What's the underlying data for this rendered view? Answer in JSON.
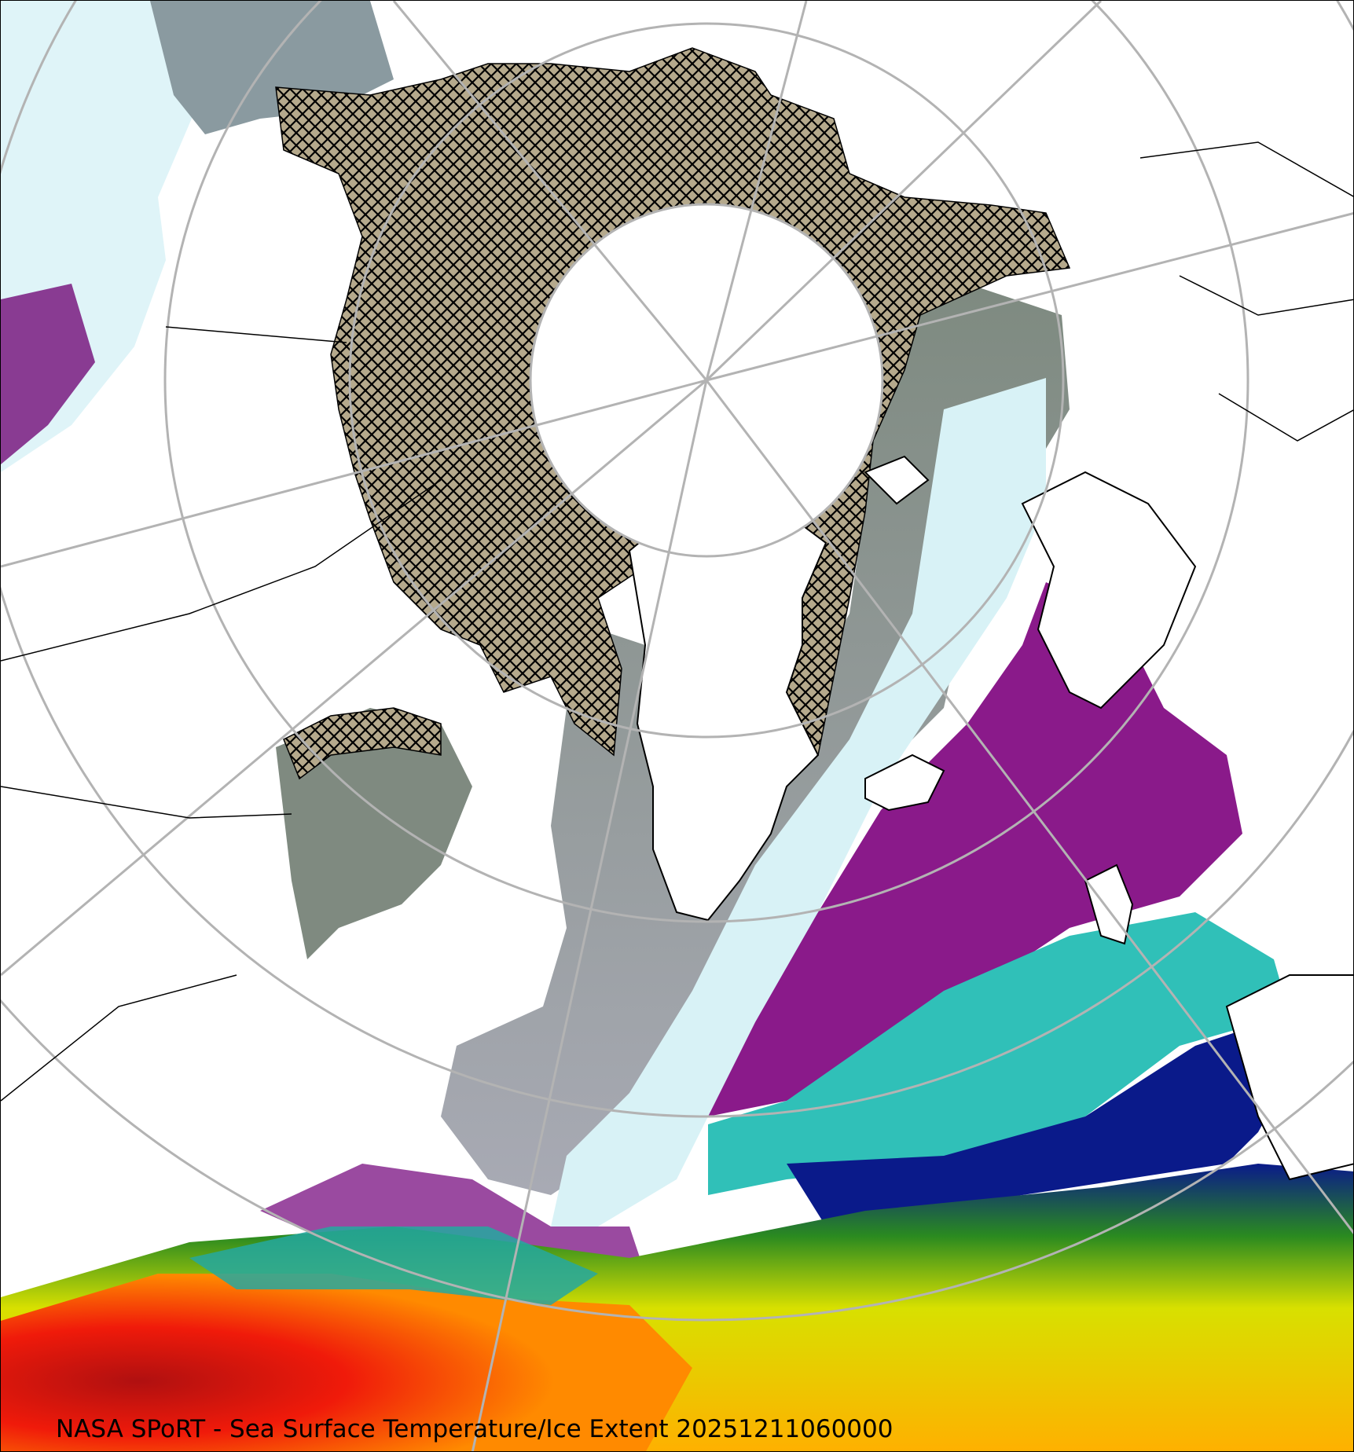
{
  "caption": "NASA SPoRT - Sea Surface Temperature/Ice Extent 20251211060000",
  "map": {
    "projection": "north-polar-stereographic",
    "layers": [
      "sea-surface-temperature",
      "sea-ice-extent-hatched",
      "coastlines",
      "political-boundaries",
      "graticule"
    ],
    "colors": {
      "land": "#ffffff",
      "ice": "#b5a98c",
      "graticule": "#b3b3b3",
      "sst_cold_gray": "#8e9698",
      "sst_light_cyan": "#d8f4f6",
      "sst_purple": "#8a1a8a",
      "sst_teal": "#30c8c0",
      "sst_navy": "#0a1a8a",
      "sst_green": "#4a9a10",
      "sst_yellow": "#f0e800",
      "sst_orange": "#ff9a00",
      "sst_red": "#e81010"
    }
  }
}
